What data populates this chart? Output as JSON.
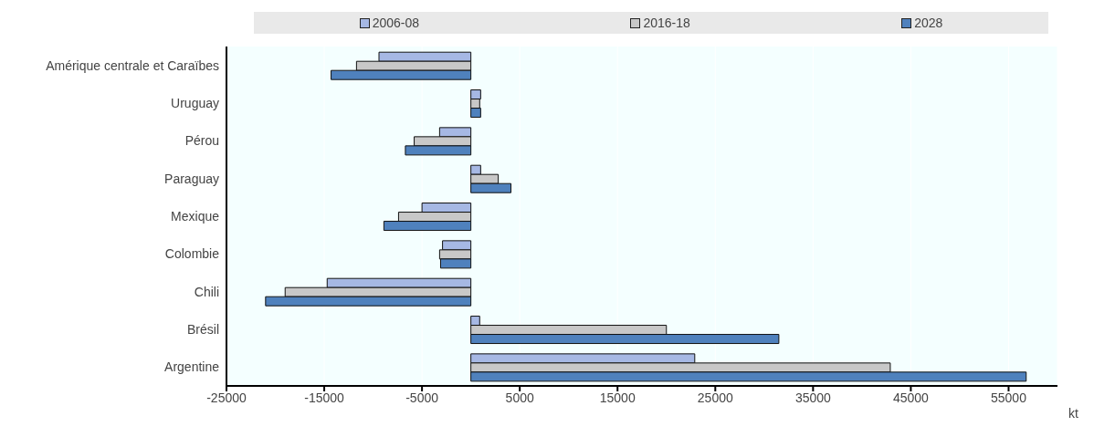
{
  "chart_data": {
    "type": "bar",
    "orientation": "horizontal",
    "xlabel": "kt",
    "categories": [
      "Amérique centrale et Caraïbes",
      "Uruguay",
      "Pérou",
      "Paraguay",
      "Mexique",
      "Colombie",
      "Chili",
      "Brésil",
      "Argentine"
    ],
    "series": [
      {
        "name": "2006-08",
        "color": "#a6b8e4",
        "values": [
          -9400,
          1000,
          -3200,
          1000,
          -5000,
          -2900,
          -14700,
          900,
          22900
        ]
      },
      {
        "name": "2016-18",
        "color": "#c8c8c8",
        "values": [
          -11700,
          900,
          -5800,
          2800,
          -7400,
          -3200,
          -19000,
          20000,
          42900
        ]
      },
      {
        "name": "2028",
        "color": "#4f81bd",
        "values": [
          -14300,
          1000,
          -6700,
          4100,
          -8900,
          -3100,
          -21000,
          31500,
          56800
        ]
      }
    ],
    "xlim": [
      -25000,
      60000
    ],
    "xticks": [
      -25000,
      -15000,
      -5000,
      5000,
      15000,
      25000,
      35000,
      45000,
      55000
    ],
    "grid": "x",
    "legend": "top"
  }
}
